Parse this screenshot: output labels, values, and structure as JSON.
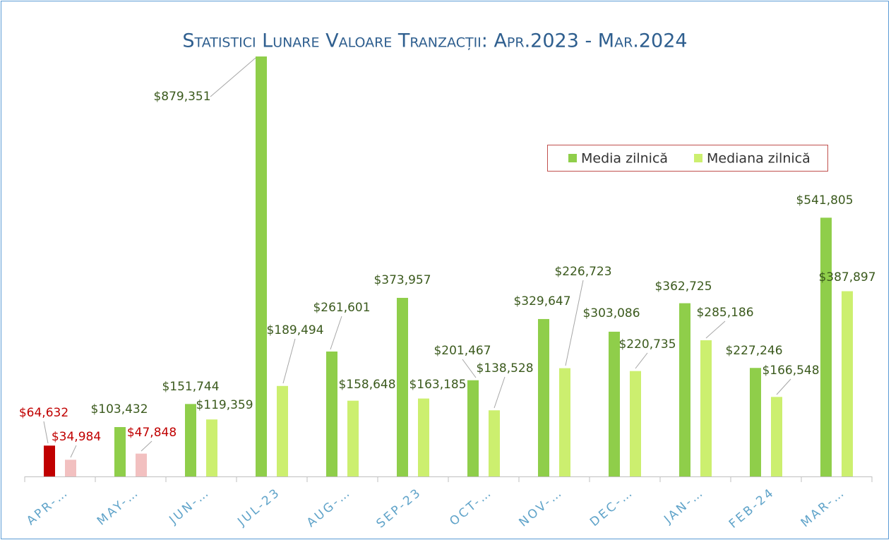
{
  "chart_data": {
    "type": "bar",
    "title": "Statistici Lunare Valoare Tranzacții: Apr.2023 - Mar.2024",
    "categories": [
      "APR-…",
      "MAY-…",
      "JUN-…",
      "JUL-23",
      "AUG-…",
      "SEP-23",
      "OCT-…",
      "NOV-…",
      "DEC-…",
      "JAN-…",
      "FEB-24",
      "MAR-…"
    ],
    "series": [
      {
        "name": "Media zilnică",
        "color": "#8fce4a",
        "colors": [
          "#c00000",
          "#8fce4a",
          "#8fce4a",
          "#8fce4a",
          "#8fce4a",
          "#8fce4a",
          "#8fce4a",
          "#8fce4a",
          "#8fce4a",
          "#8fce4a",
          "#8fce4a",
          "#8fce4a"
        ],
        "values": [
          64632,
          103432,
          151744,
          879351,
          261601,
          373957,
          201467,
          329647,
          303086,
          362725,
          227246,
          541805
        ],
        "value_labels": [
          "$64,632",
          "$103,432",
          "$151,744",
          "$879,351",
          "$261,601",
          "$373,957",
          "$201,467",
          "$329,647",
          "$303,086",
          "$362,725",
          "$227,246",
          "$541,805"
        ]
      },
      {
        "name": "Mediana zilnică",
        "color": "#ccef6f",
        "colors": [
          "#f2c0c0",
          "#f2c0c0",
          "#ccef6f",
          "#ccef6f",
          "#ccef6f",
          "#ccef6f",
          "#ccef6f",
          "#ccef6f",
          "#ccef6f",
          "#ccef6f",
          "#ccef6f",
          "#ccef6f"
        ],
        "values": [
          34984,
          47848,
          119359,
          189494,
          158648,
          163185,
          138528,
          226723,
          220735,
          285186,
          166548,
          387897
        ],
        "value_labels": [
          "$34,984",
          "$47,848",
          "$119,359",
          "$189,494",
          "$158,648",
          "$163,185",
          "$138,528",
          "$226,723",
          "$220,735",
          "$285,186",
          "$166,548",
          "$387,897"
        ]
      }
    ],
    "legend": "upper right"
  }
}
